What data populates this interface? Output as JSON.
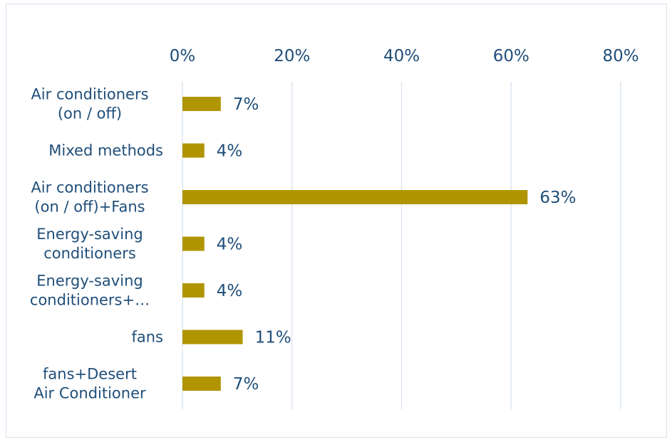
{
  "chart_data": {
    "type": "bar",
    "orientation": "horizontal",
    "categories": [
      [
        "Air conditioners",
        "(on / off)"
      ],
      [
        "Mixed methods"
      ],
      [
        "Air conditioners",
        "(on / off)+Fans"
      ],
      [
        "Energy-saving",
        "conditioners"
      ],
      [
        "Energy-saving",
        "conditioners+…"
      ],
      [
        "fans"
      ],
      [
        "fans+Desert",
        "Air Conditioner"
      ]
    ],
    "values": [
      7,
      4,
      63,
      4,
      4,
      11,
      7
    ],
    "data_labels": [
      "7%",
      "4%",
      "63%",
      "4%",
      "4%",
      "11%",
      "7%"
    ],
    "xlim": [
      0,
      80
    ],
    "ticks": [
      0,
      20,
      40,
      60,
      80
    ],
    "tick_labels": [
      "0%",
      "20%",
      "40%",
      "60%",
      "80%"
    ],
    "x_axis_position": "top",
    "grid": true,
    "title": "",
    "xlabel": "",
    "ylabel": "",
    "colors": {
      "bar": "#b09500",
      "text": "#1f4e79",
      "grid": "#d9e3ef"
    }
  }
}
